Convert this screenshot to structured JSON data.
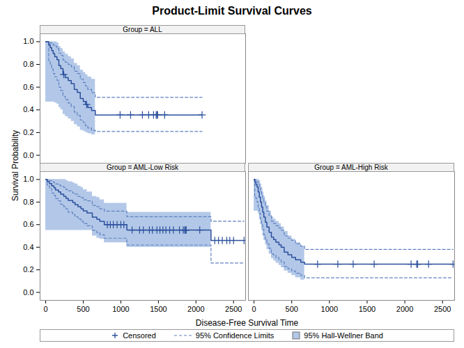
{
  "chart_data": {
    "type": "line",
    "title": "Product-Limit Survival Curves",
    "x_label": "Disease-Free Survival Time",
    "y_label": "Survival Probability",
    "xlim": [
      -75,
      2660
    ],
    "xticks": [
      0,
      500,
      1000,
      1500,
      2000,
      2500
    ],
    "ylim": [
      -0.07,
      1.07
    ],
    "yticks": [
      {
        "value": 0,
        "label": "0.0"
      },
      0.2,
      0.4,
      0.6,
      0.8,
      {
        "value": 1,
        "label": "1.0"
      }
    ],
    "color": "#2b4f9c",
    "legend": "bottom",
    "series": [
      {
        "name": "Censored",
        "color": "#2b4f9c",
        "marker": "plus"
      },
      {
        "name": "95% Confidence Limits",
        "color": "#5f80c0",
        "line_style": "dashed"
      },
      {
        "name": "95% Hall-Wellner Band",
        "color": "#b3c8e8"
      }
    ],
    "panels": [
      {
        "name": "Group = ALL",
        "time": [
          0,
          40,
          60,
          80,
          100,
          120,
          150,
          175,
          200,
          230,
          260,
          300,
          340,
          380,
          420,
          460,
          500,
          530,
          560,
          610,
          660,
          2081
        ],
        "survival": [
          1.0,
          0.974,
          0.947,
          0.921,
          0.895,
          0.868,
          0.842,
          0.789,
          0.763,
          0.711,
          0.684,
          0.658,
          0.631,
          0.579,
          0.553,
          0.5,
          0.474,
          0.447,
          0.421,
          0.395,
          0.355,
          0.355
        ],
        "cl_lower": [
          1.0,
          0.83,
          0.8,
          0.76,
          0.72,
          0.69,
          0.66,
          0.6,
          0.57,
          0.52,
          0.49,
          0.46,
          0.43,
          0.38,
          0.35,
          0.31,
          0.29,
          0.26,
          0.24,
          0.22,
          0.21,
          0.21
        ],
        "cl_upper": [
          1.0,
          0.996,
          0.99,
          0.98,
          0.97,
          0.96,
          0.94,
          0.9,
          0.88,
          0.84,
          0.82,
          0.8,
          0.78,
          0.74,
          0.72,
          0.67,
          0.64,
          0.61,
          0.58,
          0.55,
          0.51,
          0.51
        ],
        "band_lower": [
          0.47,
          0.47,
          0.47,
          0.47,
          0.47,
          0.46,
          0.45,
          0.42,
          0.4,
          0.36,
          0.34,
          0.32,
          0.3,
          0.27,
          0.25,
          0.22,
          0.21,
          0.2,
          0.19,
          0.18,
          0.18,
          null
        ],
        "band_upper": [
          1,
          1,
          1,
          1,
          1,
          1,
          0.99,
          0.96,
          0.94,
          0.91,
          0.89,
          0.87,
          0.85,
          0.81,
          0.79,
          0.75,
          0.73,
          0.71,
          0.69,
          0.67,
          0.65,
          null
        ],
        "censored_time": [
          240,
          545,
          990,
          1130,
          1287,
          1370,
          1435,
          1470,
          1480,
          1490,
          1583,
          2081
        ],
        "censored_survival": [
          0.711,
          0.447,
          0.355,
          0.355,
          0.355,
          0.355,
          0.355,
          0.355,
          0.355,
          0.355,
          0.355,
          0.355
        ]
      },
      {
        "name": "Group = AML-Low Risk",
        "time": [
          0,
          20,
          50,
          80,
          110,
          130,
          170,
          200,
          240,
          270,
          300,
          360,
          390,
          430,
          470,
          500,
          550,
          620,
          680,
          720,
          780,
          1080,
          2200,
          2640
        ],
        "survival": [
          1.0,
          0.981,
          0.963,
          0.944,
          0.926,
          0.907,
          0.889,
          0.87,
          0.852,
          0.833,
          0.815,
          0.796,
          0.778,
          0.759,
          0.741,
          0.722,
          0.704,
          0.667,
          0.648,
          0.63,
          0.6,
          0.552,
          0.46,
          0.46
        ],
        "cl_lower": [
          1.0,
          0.95,
          0.92,
          0.88,
          0.86,
          0.83,
          0.81,
          0.78,
          0.76,
          0.74,
          0.71,
          0.69,
          0.67,
          0.65,
          0.63,
          0.61,
          0.59,
          0.55,
          0.53,
          0.51,
          0.48,
          0.42,
          0.26,
          0.26
        ],
        "cl_upper": [
          1.0,
          0.997,
          0.99,
          0.98,
          0.97,
          0.96,
          0.95,
          0.94,
          0.93,
          0.91,
          0.9,
          0.88,
          0.87,
          0.85,
          0.84,
          0.82,
          0.81,
          0.77,
          0.76,
          0.74,
          0.72,
          0.67,
          0.63,
          0.63
        ],
        "band_lower": [
          0.55,
          0.55,
          0.55,
          0.55,
          0.55,
          0.55,
          0.55,
          0.55,
          0.55,
          0.55,
          0.55,
          0.55,
          0.55,
          0.55,
          0.55,
          0.55,
          0.55,
          0.5,
          0.48,
          0.47,
          0.44,
          0.4,
          0.4,
          null
        ],
        "band_upper": [
          1,
          1,
          1,
          1,
          1,
          1,
          1,
          1,
          1,
          0.99,
          0.98,
          0.97,
          0.96,
          0.94,
          0.93,
          0.91,
          0.89,
          0.85,
          0.84,
          0.82,
          0.79,
          0.71,
          0.71,
          null
        ],
        "censored_time": [
          820,
          860,
          900,
          950,
          1000,
          1040,
          1150,
          1250,
          1300,
          1380,
          1420,
          1480,
          1520,
          1560,
          1600,
          1650,
          1700,
          1780,
          1830,
          1850,
          1860,
          1870,
          2050,
          2250,
          2300,
          2350,
          2410,
          2450,
          2500,
          2640
        ],
        "censored_survival": [
          0.6,
          0.6,
          0.6,
          0.6,
          0.6,
          0.6,
          0.552,
          0.552,
          0.552,
          0.552,
          0.552,
          0.552,
          0.552,
          0.552,
          0.552,
          0.552,
          0.552,
          0.552,
          0.552,
          0.552,
          0.552,
          0.552,
          0.552,
          0.46,
          0.46,
          0.46,
          0.46,
          0.46,
          0.46,
          0.46
        ]
      },
      {
        "name": "Group = AML-High Risk",
        "time": [
          0,
          10,
          25,
          40,
          55,
          70,
          85,
          100,
          115,
          130,
          150,
          170,
          200,
          230,
          260,
          290,
          330,
          360,
          400,
          450,
          500,
          550,
          620,
          670,
          2640
        ],
        "survival": [
          1.0,
          0.978,
          0.956,
          0.933,
          0.889,
          0.844,
          0.8,
          0.756,
          0.711,
          0.667,
          0.622,
          0.578,
          0.533,
          0.489,
          0.467,
          0.444,
          0.422,
          0.4,
          0.356,
          0.333,
          0.311,
          0.289,
          0.267,
          0.25,
          0.25
        ],
        "cl_lower": [
          1.0,
          0.85,
          0.83,
          0.8,
          0.75,
          0.7,
          0.65,
          0.6,
          0.56,
          0.51,
          0.47,
          0.43,
          0.39,
          0.34,
          0.33,
          0.31,
          0.29,
          0.27,
          0.23,
          0.21,
          0.19,
          0.17,
          0.15,
          0.13,
          0.13
        ],
        "cl_upper": [
          1.0,
          0.997,
          0.99,
          0.98,
          0.96,
          0.93,
          0.9,
          0.87,
          0.83,
          0.8,
          0.76,
          0.72,
          0.68,
          0.63,
          0.61,
          0.59,
          0.57,
          0.55,
          0.5,
          0.48,
          0.46,
          0.43,
          0.41,
          0.38,
          0.38
        ],
        "band_lower": [
          0.72,
          0.72,
          0.72,
          0.72,
          0.7,
          0.65,
          0.6,
          0.55,
          0.5,
          0.46,
          0.42,
          0.38,
          0.34,
          0.3,
          0.28,
          0.26,
          0.24,
          0.22,
          0.19,
          0.17,
          0.15,
          0.13,
          0.11,
          0.09,
          null
        ],
        "band_upper": [
          1,
          1,
          1,
          1,
          1,
          0.99,
          0.96,
          0.93,
          0.89,
          0.85,
          0.81,
          0.77,
          0.72,
          0.67,
          0.65,
          0.63,
          0.61,
          0.58,
          0.54,
          0.5,
          0.47,
          0.44,
          0.41,
          0.38,
          null
        ],
        "censored_time": [
          843,
          1111,
          1315,
          1593,
          2083,
          2157,
          2170,
          2315,
          2640
        ],
        "censored_survival": [
          0.25,
          0.25,
          0.25,
          0.25,
          0.25,
          0.25,
          0.25,
          0.25,
          0.25
        ]
      }
    ]
  }
}
